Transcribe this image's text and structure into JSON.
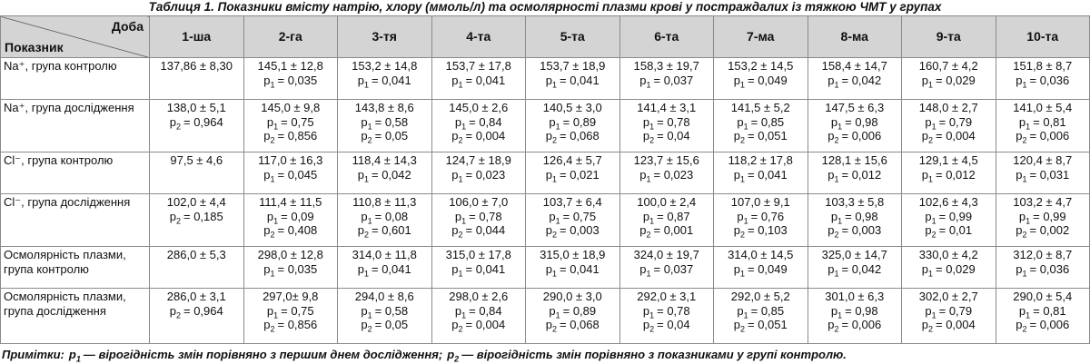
{
  "title": "Таблиця 1. Показники вмісту натрію, хлору (ммоль/л) та осмолярності  плазми крові у постраждалих із тяжкою ЧМТ у групах",
  "table": {
    "corner": {
      "top": "Доба",
      "bottom": "Показник"
    },
    "columns": [
      "1-ша",
      "2-га",
      "3-тя",
      "4-та",
      "5-та",
      "6-та",
      "7-ма",
      "8-ма",
      "9-та",
      "10-та"
    ],
    "rows": [
      {
        "label": "Na⁺, група контролю",
        "cells": [
          [
            "137,86 ± 8,30"
          ],
          [
            "145,1 ± 12,8",
            [
              "p",
              "1",
              "= 0,035"
            ]
          ],
          [
            "153,2 ± 14,8",
            [
              "p",
              "1",
              "= 0,041"
            ]
          ],
          [
            "153,7 ± 17,8",
            [
              "p",
              "1",
              "= 0,041"
            ]
          ],
          [
            "153,7 ± 18,9",
            [
              "p",
              "1",
              "= 0,041"
            ]
          ],
          [
            "158,3 ± 19,7",
            [
              "p",
              "1",
              "= 0,037"
            ]
          ],
          [
            "153,2 ± 14,5",
            [
              "p",
              "1",
              "= 0,049"
            ]
          ],
          [
            "158,4 ± 14,7",
            [
              "p",
              "1",
              "= 0,042"
            ]
          ],
          [
            "160,7 ± 4,2",
            [
              "p",
              "1",
              "= 0,029"
            ]
          ],
          [
            "151,8 ± 8,7",
            [
              "p",
              "1",
              "= 0,036"
            ]
          ]
        ]
      },
      {
        "label": "Na⁺, група дослідження",
        "cells": [
          [
            "138,0 ± 5,1",
            [
              "p",
              "2",
              "= 0,964"
            ]
          ],
          [
            "145,0 ± 9,8",
            [
              "p",
              "1",
              "= 0,75"
            ],
            [
              "p",
              "2",
              "= 0,856"
            ]
          ],
          [
            "143,8 ± 8,6",
            [
              "p",
              "1",
              "= 0,58"
            ],
            [
              "p",
              "2",
              "= 0,05"
            ]
          ],
          [
            "145,0 ± 2,6",
            [
              "p",
              "1",
              "= 0,84"
            ],
            [
              "p",
              "2",
              "= 0,004"
            ]
          ],
          [
            "140,5 ± 3,0",
            [
              "p",
              "1",
              "= 0,89"
            ],
            [
              "p",
              "2",
              "= 0,068"
            ]
          ],
          [
            "141,4 ± 3,1",
            [
              "p",
              "1",
              "= 0,78"
            ],
            [
              "p",
              "2",
              "= 0,04"
            ]
          ],
          [
            "141,5 ± 5,2",
            [
              "p",
              "1",
              "= 0,85"
            ],
            [
              "p",
              "2",
              "= 0,051"
            ]
          ],
          [
            "147,5 ± 6,3",
            [
              "p",
              "1",
              "= 0,98"
            ],
            [
              "p",
              "2",
              "= 0,006"
            ]
          ],
          [
            "148,0 ± 2,7",
            [
              "p",
              "1",
              "= 0,79"
            ],
            [
              "p",
              "2",
              "= 0,004"
            ]
          ],
          [
            "141,0 ± 5,4",
            [
              "p",
              "1",
              "= 0,81"
            ],
            [
              "p",
              "2",
              "= 0,006"
            ]
          ]
        ]
      },
      {
        "label": "Cl⁻, група контролю",
        "cells": [
          [
            "97,5 ± 4,6"
          ],
          [
            "117,0 ± 16,3",
            [
              "p",
              "1",
              "= 0,045"
            ]
          ],
          [
            "118,4 ± 14,3",
            [
              "p",
              "1",
              "= 0,042"
            ]
          ],
          [
            "124,7 ± 18,9",
            [
              "p",
              "1",
              "= 0,023"
            ]
          ],
          [
            "126,4 ± 5,7",
            [
              "p",
              "1",
              "= 0,021"
            ]
          ],
          [
            "123,7 ± 15,6",
            [
              "p",
              "1",
              "= 0,023"
            ]
          ],
          [
            "118,2 ± 17,8",
            [
              "p",
              "1",
              "= 0,041"
            ]
          ],
          [
            "128,1 ± 15,6",
            [
              "p",
              "1",
              "= 0,012"
            ]
          ],
          [
            "129,1 ± 4,5",
            [
              "p",
              "1",
              "= 0,012"
            ]
          ],
          [
            "120,4 ± 8,7",
            [
              "p",
              "1",
              "= 0,031"
            ]
          ]
        ]
      },
      {
        "label": "Cl⁻, група дослідження",
        "cells": [
          [
            "102,0 ± 4,4",
            [
              "p",
              "2",
              "= 0,185"
            ]
          ],
          [
            "111,4 ± 11,5",
            [
              "p",
              "1",
              "= 0,09"
            ],
            [
              "p",
              "2",
              "= 0,408"
            ]
          ],
          [
            "110,8 ± 11,3",
            [
              "p",
              "1",
              "= 0,08"
            ],
            [
              "p",
              "2",
              "= 0,601"
            ]
          ],
          [
            "106,0 ± 7,0",
            [
              "p",
              "1",
              "= 0,78"
            ],
            [
              "p",
              "2",
              "= 0,044"
            ]
          ],
          [
            "103,7 ± 6,4",
            [
              "p",
              "1",
              "= 0,75"
            ],
            [
              "p",
              "2",
              "= 0,003"
            ]
          ],
          [
            "100,0 ± 2,4",
            [
              "p",
              "1",
              "= 0,87"
            ],
            [
              "p",
              "2",
              "= 0,001"
            ]
          ],
          [
            "107,0 ± 9,1",
            [
              "p",
              "1",
              "= 0,76"
            ],
            [
              "p",
              "2",
              "= 0,103"
            ]
          ],
          [
            "103,3 ± 5,8",
            [
              "p",
              "1",
              "= 0,98"
            ],
            [
              "p",
              "2",
              "= 0,003"
            ]
          ],
          [
            "102,6 ± 4,3",
            [
              "p",
              "1",
              "= 0,99"
            ],
            [
              "p",
              "2",
              "= 0,01"
            ]
          ],
          [
            "103,2 ± 4,7",
            [
              "p",
              "1",
              "= 0,99"
            ],
            [
              "p",
              "2",
              "= 0,002"
            ]
          ]
        ]
      },
      {
        "label": "Осмолярність плазми, група контролю",
        "cells": [
          [
            "286,0 ± 5,3"
          ],
          [
            "298,0 ± 12,8",
            [
              "p",
              "1",
              "= 0,035"
            ]
          ],
          [
            "314,0 ± 11,8",
            [
              "p",
              "1",
              "= 0,041"
            ]
          ],
          [
            "315,0 ± 17,8",
            [
              "p",
              "1",
              "= 0,041"
            ]
          ],
          [
            "315,0 ± 18,9",
            [
              "p",
              "1",
              "= 0,041"
            ]
          ],
          [
            "324,0 ± 19,7",
            [
              "p",
              "1",
              "= 0,037"
            ]
          ],
          [
            "314,0 ± 14,5",
            [
              "p",
              "1",
              "= 0,049"
            ]
          ],
          [
            "325,0 ± 14,7",
            [
              "p",
              "1",
              "= 0,042"
            ]
          ],
          [
            "330,0 ± 4,2",
            [
              "p",
              "1",
              "= 0,029"
            ]
          ],
          [
            "312,0 ± 8,7",
            [
              "p",
              "1",
              "= 0,036"
            ]
          ]
        ]
      },
      {
        "label": "Осмолярність плазми, група дослідження",
        "cells": [
          [
            "286,0 ± 3,1",
            [
              "p",
              "2",
              "= 0,964"
            ]
          ],
          [
            "297,0± 9,8",
            [
              "p",
              "1",
              "= 0,75"
            ],
            [
              "p",
              "2",
              "= 0,856"
            ]
          ],
          [
            "294,0 ± 8,6",
            [
              "p",
              "1",
              "= 0,58"
            ],
            [
              "p",
              "2",
              "= 0,05"
            ]
          ],
          [
            "298,0 ± 2,6",
            [
              "p",
              "1",
              "= 0,84"
            ],
            [
              "p",
              "2",
              "= 0,004"
            ]
          ],
          [
            "290,0 ± 3,0",
            [
              "p",
              "1",
              "= 0,89"
            ],
            [
              "p",
              "2",
              "= 0,068"
            ]
          ],
          [
            "292,0 ± 3,1",
            [
              "p",
              "1",
              "= 0,78"
            ],
            [
              "p",
              "2",
              "= 0,04"
            ]
          ],
          [
            "292,0 ± 5,2",
            [
              "p",
              "1",
              "= 0,85"
            ],
            [
              "p",
              "2",
              "= 0,051"
            ]
          ],
          [
            "301,0 ± 6,3",
            [
              "p",
              "1",
              "= 0,98"
            ],
            [
              "p",
              "2",
              "= 0,006"
            ]
          ],
          [
            "302,0 ± 2,7",
            [
              "p",
              "1",
              "= 0,79"
            ],
            [
              "p",
              "2",
              "= 0,004"
            ]
          ],
          [
            "290,0 ± 5,4",
            [
              "p",
              "1",
              "= 0,81"
            ],
            [
              "p",
              "2",
              "= 0,006"
            ]
          ]
        ]
      }
    ]
  },
  "footnote": {
    "label": "Примітки:",
    "items": [
      [
        "p",
        "1",
        "— вірогідність змін порівняно з першим днем дослідження;"
      ],
      [
        "p",
        "2",
        "— вірогідність змін порівняно з показниками у групі контролю."
      ]
    ]
  }
}
